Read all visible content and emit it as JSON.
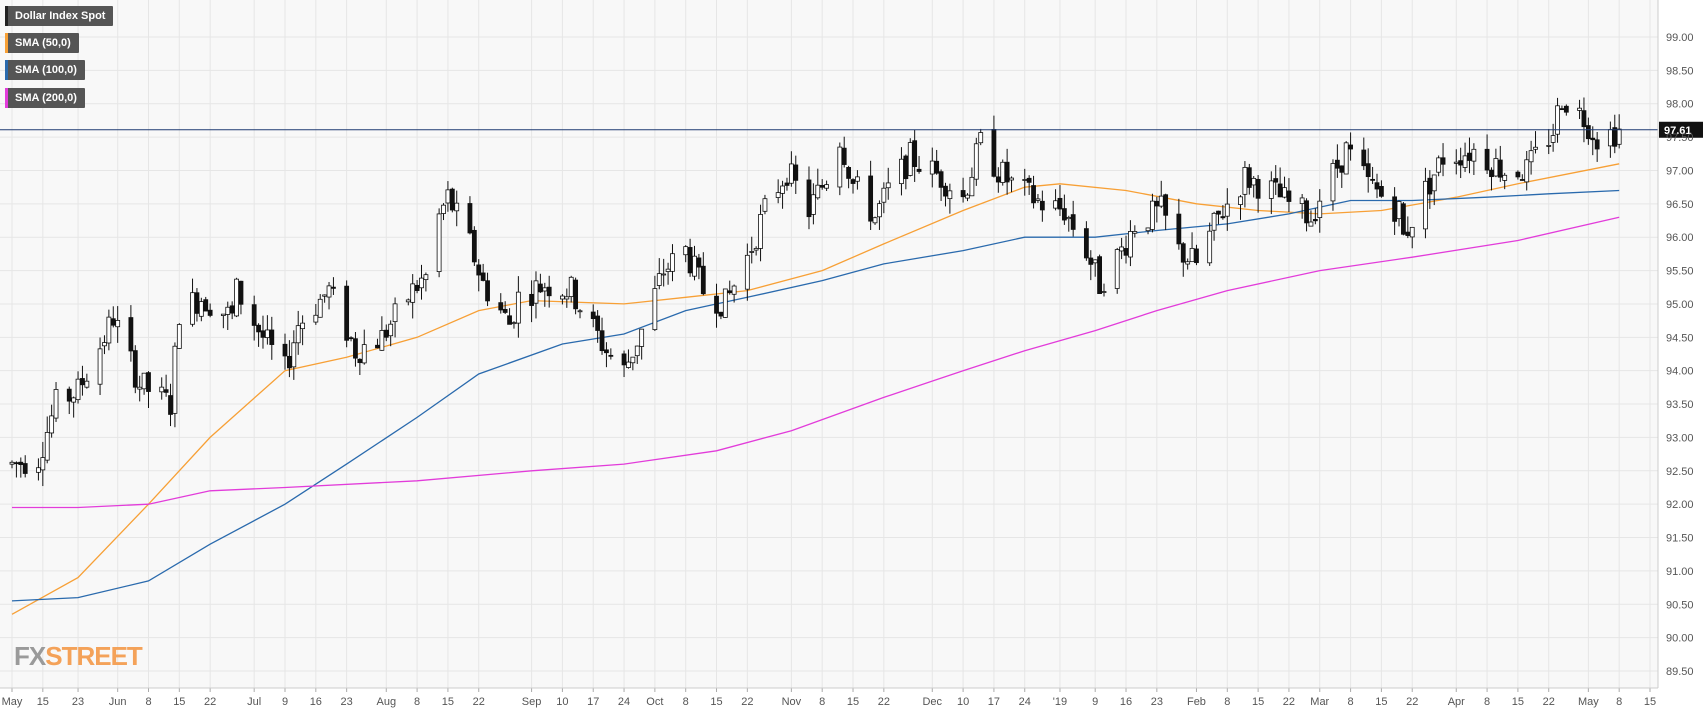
{
  "chart_data": {
    "type": "candlestick",
    "title": "",
    "xlabel": "",
    "ylabel": "",
    "ylim": [
      89.2,
      99.45
    ],
    "y_ticks": [
      89.5,
      90.0,
      90.5,
      91.0,
      91.5,
      92.0,
      92.5,
      93.0,
      93.5,
      94.0,
      94.5,
      95.0,
      95.5,
      96.0,
      96.5,
      97.0,
      97.5,
      98.0,
      98.5,
      99.0
    ],
    "y_tick_labels": [
      "89.50",
      "90.00",
      "90.50",
      "91.00",
      "91.50",
      "92.00",
      "92.50",
      "93.00",
      "93.50",
      "94.00",
      "94.50",
      "95.00",
      "95.50",
      "96.00",
      "96.50",
      "97.00",
      "97.50",
      "98.00",
      "98.50",
      "99.00"
    ],
    "x_start": "2018-05-08",
    "x_end": "2019-05-15",
    "x_ticks": [
      {
        "date": "2018-05-08",
        "label": "May"
      },
      {
        "date": "2018-05-15",
        "label": "15"
      },
      {
        "date": "2018-05-23",
        "label": "23"
      },
      {
        "date": "2018-06-01",
        "label": "Jun"
      },
      {
        "date": "2018-06-08",
        "label": "8"
      },
      {
        "date": "2018-06-15",
        "label": "15"
      },
      {
        "date": "2018-06-22",
        "label": "22"
      },
      {
        "date": "2018-07-02",
        "label": "Jul"
      },
      {
        "date": "2018-07-09",
        "label": "9"
      },
      {
        "date": "2018-07-16",
        "label": "16"
      },
      {
        "date": "2018-07-23",
        "label": "23"
      },
      {
        "date": "2018-08-01",
        "label": "Aug"
      },
      {
        "date": "2018-08-08",
        "label": "8"
      },
      {
        "date": "2018-08-15",
        "label": "15"
      },
      {
        "date": "2018-08-22",
        "label": "22"
      },
      {
        "date": "2018-09-03",
        "label": "Sep"
      },
      {
        "date": "2018-09-10",
        "label": "10"
      },
      {
        "date": "2018-09-17",
        "label": "17"
      },
      {
        "date": "2018-09-24",
        "label": "24"
      },
      {
        "date": "2018-10-01",
        "label": "Oct"
      },
      {
        "date": "2018-10-08",
        "label": "8"
      },
      {
        "date": "2018-10-15",
        "label": "15"
      },
      {
        "date": "2018-10-22",
        "label": "22"
      },
      {
        "date": "2018-11-01",
        "label": "Nov"
      },
      {
        "date": "2018-11-08",
        "label": "8"
      },
      {
        "date": "2018-11-15",
        "label": "15"
      },
      {
        "date": "2018-11-22",
        "label": "22"
      },
      {
        "date": "2018-12-03",
        "label": "Dec"
      },
      {
        "date": "2018-12-10",
        "label": "10"
      },
      {
        "date": "2018-12-17",
        "label": "17"
      },
      {
        "date": "2018-12-24",
        "label": "24"
      },
      {
        "date": "2019-01-01",
        "label": "'19"
      },
      {
        "date": "2019-01-09",
        "label": "9"
      },
      {
        "date": "2019-01-16",
        "label": "16"
      },
      {
        "date": "2019-01-23",
        "label": "23"
      },
      {
        "date": "2019-02-01",
        "label": "Feb"
      },
      {
        "date": "2019-02-08",
        "label": "8"
      },
      {
        "date": "2019-02-15",
        "label": "15"
      },
      {
        "date": "2019-02-22",
        "label": "22"
      },
      {
        "date": "2019-03-01",
        "label": "Mar"
      },
      {
        "date": "2019-03-08",
        "label": "8"
      },
      {
        "date": "2019-03-15",
        "label": "15"
      },
      {
        "date": "2019-03-22",
        "label": "22"
      },
      {
        "date": "2019-04-01",
        "label": "Apr"
      },
      {
        "date": "2019-04-08",
        "label": "8"
      },
      {
        "date": "2019-04-15",
        "label": "15"
      },
      {
        "date": "2019-04-22",
        "label": "22"
      },
      {
        "date": "2019-05-01",
        "label": "May"
      },
      {
        "date": "2019-05-08",
        "label": "8"
      },
      {
        "date": "2019-05-15",
        "label": "15"
      }
    ],
    "last_price": 97.61,
    "last_price_label": "97.61",
    "price_anchors": [
      [
        "2018-05-08",
        92.6
      ],
      [
        "2018-05-14",
        92.7
      ],
      [
        "2018-05-18",
        93.5
      ],
      [
        "2018-05-23",
        93.7
      ],
      [
        "2018-05-29",
        94.5
      ],
      [
        "2018-05-31",
        94.8
      ],
      [
        "2018-06-06",
        93.8
      ],
      [
        "2018-06-13",
        93.5
      ],
      [
        "2018-06-15",
        94.9
      ],
      [
        "2018-06-20",
        95.1
      ],
      [
        "2018-06-27",
        94.8
      ],
      [
        "2018-06-28",
        95.2
      ],
      [
        "2018-07-04",
        94.5
      ],
      [
        "2018-07-09",
        94.0
      ],
      [
        "2018-07-12",
        94.7
      ],
      [
        "2018-07-19",
        95.2
      ],
      [
        "2018-07-25",
        94.3
      ],
      [
        "2018-07-31",
        94.5
      ],
      [
        "2018-08-07",
        95.2
      ],
      [
        "2018-08-10",
        95.4
      ],
      [
        "2018-08-13",
        96.3
      ],
      [
        "2018-08-15",
        96.6
      ],
      [
        "2018-08-20",
        95.9
      ],
      [
        "2018-08-23",
        95.3
      ],
      [
        "2018-08-29",
        94.7
      ],
      [
        "2018-08-31",
        95.1
      ],
      [
        "2018-09-06",
        95.3
      ],
      [
        "2018-09-12",
        95.2
      ],
      [
        "2018-09-20",
        94.3
      ],
      [
        "2018-09-24",
        94.0
      ],
      [
        "2018-09-28",
        94.6
      ],
      [
        "2018-10-03",
        95.5
      ],
      [
        "2018-10-08",
        95.8
      ],
      [
        "2018-10-12",
        95.2
      ],
      [
        "2018-10-17",
        95.0
      ],
      [
        "2018-10-22",
        95.7
      ],
      [
        "2018-10-26",
        96.4
      ],
      [
        "2018-10-31",
        97.0
      ],
      [
        "2018-11-05",
        96.4
      ],
      [
        "2018-11-09",
        96.9
      ],
      [
        "2018-11-12",
        97.5
      ],
      [
        "2018-11-15",
        96.8
      ],
      [
        "2018-11-20",
        96.3
      ],
      [
        "2018-11-23",
        96.7
      ],
      [
        "2018-11-28",
        97.2
      ],
      [
        "2018-12-05",
        96.9
      ],
      [
        "2018-12-10",
        96.6
      ],
      [
        "2018-12-14",
        97.4
      ],
      [
        "2018-12-18",
        97.0
      ],
      [
        "2018-12-21",
        96.8
      ],
      [
        "2018-12-28",
        96.5
      ],
      [
        "2019-01-02",
        96.4
      ],
      [
        "2019-01-07",
        95.8
      ],
      [
        "2019-01-10",
        95.3
      ],
      [
        "2019-01-15",
        95.8
      ],
      [
        "2019-01-18",
        96.2
      ],
      [
        "2019-01-24",
        96.4
      ],
      [
        "2019-01-28",
        95.8
      ],
      [
        "2019-02-01",
        95.6
      ],
      [
        "2019-02-06",
        96.3
      ],
      [
        "2019-02-12",
        96.9
      ],
      [
        "2019-02-18",
        96.7
      ],
      [
        "2019-02-22",
        96.5
      ],
      [
        "2019-02-27",
        96.3
      ],
      [
        "2019-03-01",
        96.6
      ],
      [
        "2019-03-07",
        97.3
      ],
      [
        "2019-03-12",
        96.8
      ],
      [
        "2019-03-19",
        96.4
      ],
      [
        "2019-03-20",
        96.0
      ],
      [
        "2019-03-25",
        96.7
      ],
      [
        "2019-03-29",
        97.2
      ],
      [
        "2019-04-05",
        97.3
      ],
      [
        "2019-04-12",
        97.0
      ],
      [
        "2019-04-17",
        97.0
      ],
      [
        "2019-04-23",
        97.6
      ],
      [
        "2019-04-25",
        98.1
      ],
      [
        "2019-04-30",
        97.8
      ],
      [
        "2019-05-03",
        97.5
      ],
      [
        "2019-05-08",
        97.6
      ]
    ],
    "sma_series": [
      {
        "name": "SMA (50,0)",
        "color": "#f7a036",
        "points": [
          [
            "2018-05-08",
            90.35
          ],
          [
            "2018-05-23",
            90.9
          ],
          [
            "2018-06-08",
            92.0
          ],
          [
            "2018-06-22",
            93.0
          ],
          [
            "2018-07-09",
            94.0
          ],
          [
            "2018-07-23",
            94.2
          ],
          [
            "2018-08-08",
            94.5
          ],
          [
            "2018-08-22",
            94.9
          ],
          [
            "2018-09-03",
            95.05
          ],
          [
            "2018-09-24",
            95.0
          ],
          [
            "2018-10-08",
            95.1
          ],
          [
            "2018-10-22",
            95.2
          ],
          [
            "2018-11-08",
            95.5
          ],
          [
            "2018-11-22",
            95.9
          ],
          [
            "2018-12-10",
            96.4
          ],
          [
            "2018-12-24",
            96.75
          ],
          [
            "2019-01-01",
            96.8
          ],
          [
            "2019-01-16",
            96.7
          ],
          [
            "2019-02-01",
            96.5
          ],
          [
            "2019-02-15",
            96.4
          ],
          [
            "2019-03-01",
            96.35
          ],
          [
            "2019-03-15",
            96.4
          ],
          [
            "2019-04-01",
            96.6
          ],
          [
            "2019-04-15",
            96.8
          ],
          [
            "2019-05-08",
            97.1
          ]
        ]
      },
      {
        "name": "SMA (100,0)",
        "color": "#2a6aad",
        "points": [
          [
            "2018-05-08",
            90.55
          ],
          [
            "2018-05-23",
            90.6
          ],
          [
            "2018-06-08",
            90.85
          ],
          [
            "2018-06-22",
            91.4
          ],
          [
            "2018-07-09",
            92.0
          ],
          [
            "2018-07-23",
            92.6
          ],
          [
            "2018-08-08",
            93.3
          ],
          [
            "2018-08-22",
            93.95
          ],
          [
            "2018-09-10",
            94.4
          ],
          [
            "2018-09-24",
            94.55
          ],
          [
            "2018-10-08",
            94.9
          ],
          [
            "2018-10-22",
            95.1
          ],
          [
            "2018-11-08",
            95.35
          ],
          [
            "2018-11-22",
            95.6
          ],
          [
            "2018-12-10",
            95.8
          ],
          [
            "2018-12-24",
            96.0
          ],
          [
            "2019-01-09",
            96.0
          ],
          [
            "2019-01-23",
            96.1
          ],
          [
            "2019-02-08",
            96.2
          ],
          [
            "2019-02-22",
            96.35
          ],
          [
            "2019-03-08",
            96.55
          ],
          [
            "2019-03-22",
            96.55
          ],
          [
            "2019-04-08",
            96.6
          ],
          [
            "2019-04-22",
            96.65
          ],
          [
            "2019-05-08",
            96.7
          ]
        ]
      },
      {
        "name": "SMA (200,0)",
        "color": "#e23cda",
        "points": [
          [
            "2018-05-08",
            91.95
          ],
          [
            "2018-05-23",
            91.95
          ],
          [
            "2018-06-08",
            92.0
          ],
          [
            "2018-06-22",
            92.2
          ],
          [
            "2018-07-09",
            92.25
          ],
          [
            "2018-08-08",
            92.35
          ],
          [
            "2018-09-03",
            92.5
          ],
          [
            "2018-09-24",
            92.6
          ],
          [
            "2018-10-15",
            92.8
          ],
          [
            "2018-11-01",
            93.1
          ],
          [
            "2018-11-22",
            93.6
          ],
          [
            "2018-12-10",
            94.0
          ],
          [
            "2018-12-24",
            94.3
          ],
          [
            "2019-01-09",
            94.6
          ],
          [
            "2019-01-23",
            94.9
          ],
          [
            "2019-02-08",
            95.2
          ],
          [
            "2019-03-01",
            95.5
          ],
          [
            "2019-03-22",
            95.7
          ],
          [
            "2019-04-15",
            95.95
          ],
          [
            "2019-05-08",
            96.3
          ]
        ]
      }
    ]
  },
  "legend": [
    {
      "label": "Dollar Index Spot",
      "color": "#222222"
    },
    {
      "label": "SMA (50,0)",
      "color": "#f7a036"
    },
    {
      "label": "SMA (100,0)",
      "color": "#2a6aad"
    },
    {
      "label": "SMA (200,0)",
      "color": "#e23cda"
    }
  ],
  "logo": {
    "part1": "FX",
    "part2": "STREET"
  },
  "colors": {
    "grid": "#e6e6e6",
    "background": "#f8f8f8",
    "price_line": "#1f3b73",
    "axis_text": "#555555"
  }
}
